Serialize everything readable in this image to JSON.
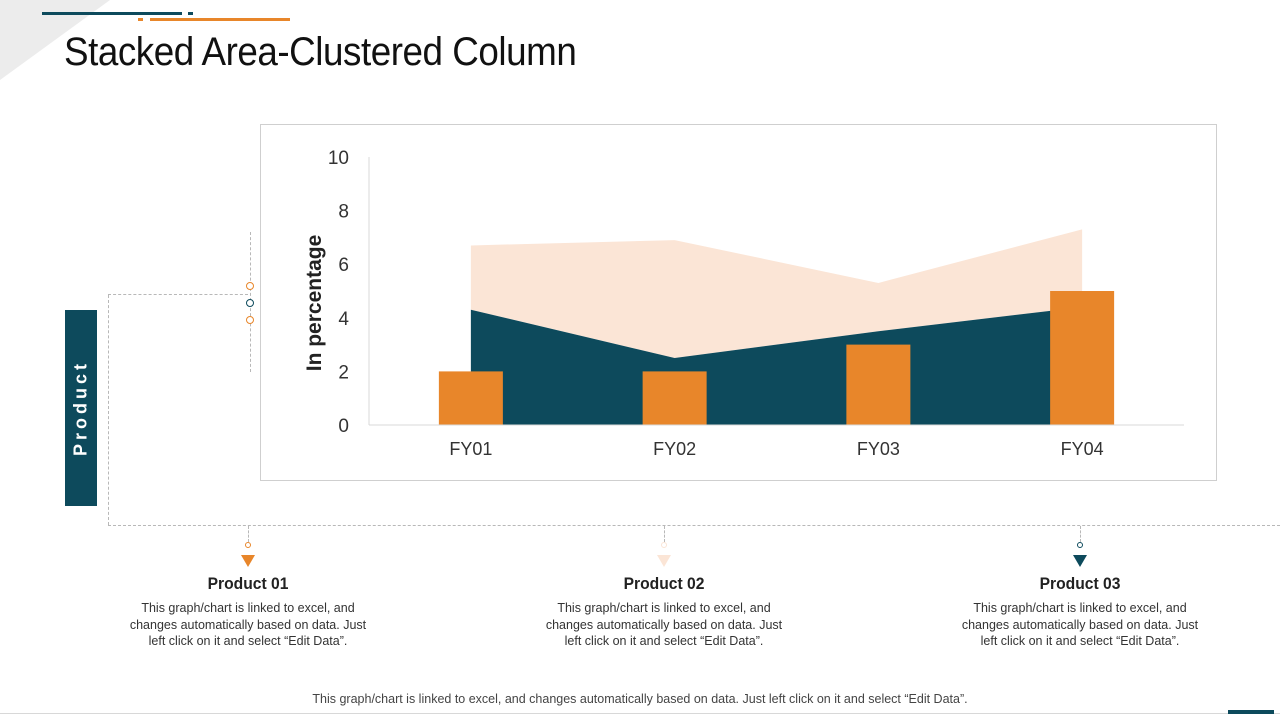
{
  "page": {
    "title": "Stacked Area-Clustered Column"
  },
  "sidebar": {
    "label": "Product"
  },
  "colors": {
    "navy": "#0d4a5c",
    "orange": "#e8862a",
    "peach": "#fbe5d6",
    "gray": "#b8b8b8"
  },
  "chart_data": {
    "type": "bar",
    "subtype": "stacked-area + clustered-column",
    "title": "",
    "xlabel": "",
    "ylabel": "In percentage",
    "ylim": [
      0,
      10
    ],
    "yticks": [
      0,
      2,
      4,
      6,
      8,
      10
    ],
    "categories": [
      "FY01",
      "FY02",
      "FY03",
      "FY04"
    ],
    "series": [
      {
        "name": "Product 01",
        "kind": "column",
        "color": "#e8862a",
        "values": [
          2,
          2,
          3,
          5
        ]
      },
      {
        "name": "Product 02",
        "kind": "area",
        "stacked": true,
        "color": "#fbe5d6",
        "values": [
          2.4,
          4.4,
          1.8,
          2.9
        ]
      },
      {
        "name": "Product 03",
        "kind": "area",
        "stacked": true,
        "color": "#0d4a5c",
        "values": [
          4.3,
          2.5,
          3.5,
          4.4
        ]
      }
    ],
    "grid": false,
    "legend": "none"
  },
  "products": [
    {
      "name": "Product 01",
      "desc": "This graph/chart is linked to excel, and changes automatically based on data. Just left click on it and select “Edit Data”.",
      "color": "#e8862a"
    },
    {
      "name": "Product 02",
      "desc": "This graph/chart is linked to excel, and changes automatically based on data. Just left click on it and select “Edit Data”.",
      "color": "#fbe5d6"
    },
    {
      "name": "Product 03",
      "desc": "This graph/chart is linked to excel, and changes automatically based on data. Just left click on it and select “Edit Data”.",
      "color": "#0d4a5c"
    }
  ],
  "footer": {
    "text": "This graph/chart is linked to excel, and changes automatically based on data. Just left click on it and select “Edit Data”."
  }
}
